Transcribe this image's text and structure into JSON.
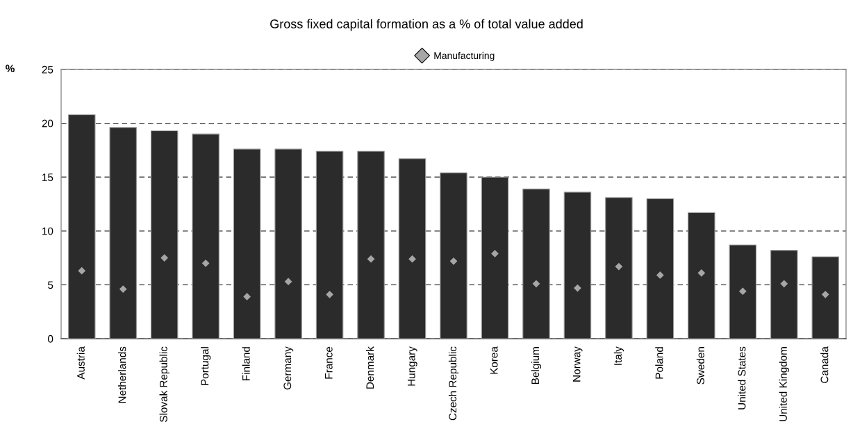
{
  "chart_data": {
    "type": "bar",
    "title": "Gross fixed capital formation as a % of total value added",
    "ylabel": "%",
    "categories": [
      "Austria",
      "Netherlands",
      "Slovak Republic",
      "Portugal",
      "Finland",
      "Germany",
      "France",
      "Denmark",
      "Hungary",
      "Czech Republic",
      "Korea",
      "Belgium",
      "Norway",
      "Italy",
      "Poland",
      "Sweden",
      "United States",
      "United Kingdom",
      "Canada"
    ],
    "series": [
      {
        "color": "#2b2b2b",
        "values": [
          20.8,
          19.6,
          19.3,
          19.0,
          17.6,
          17.6,
          17.4,
          17.4,
          16.7,
          15.4,
          15.0,
          13.9,
          13.6,
          13.1,
          13.0,
          11.7,
          8.7,
          8.2,
          7.6
        ]
      },
      {
        "type": "scatter",
        "name": "Manufacturing",
        "color": "#a6a6a6",
        "marker": "diamond",
        "values": [
          6.3,
          4.6,
          7.5,
          7.0,
          3.9,
          5.3,
          4.1,
          7.4,
          7.4,
          7.2,
          7.9,
          5.1,
          4.7,
          6.7,
          5.9,
          6.1,
          4.4,
          5.1,
          4.1
        ]
      }
    ],
    "ylim": [
      0,
      25
    ],
    "yticks": [
      0,
      5,
      10,
      15,
      20,
      25
    ],
    "grid": "y",
    "legend": "top"
  }
}
